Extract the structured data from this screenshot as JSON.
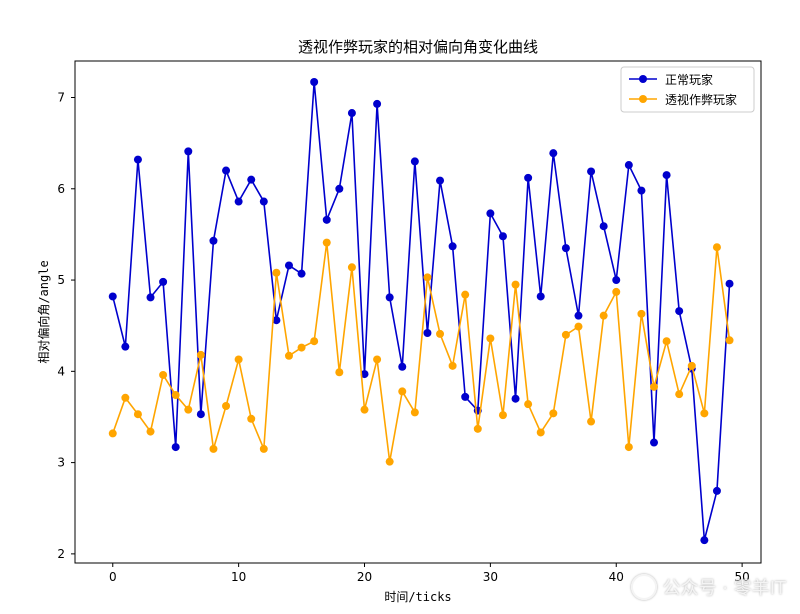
{
  "chart_data": {
    "type": "line",
    "title": "透视作弊玩家的相对偏向角变化曲线",
    "xlabel": "时间/ticks",
    "ylabel": "相对偏向角/angle",
    "xlim": [
      -3,
      51.5
    ],
    "ylim": [
      1.9,
      7.4
    ],
    "xticks": [
      0,
      10,
      20,
      30,
      40,
      50
    ],
    "yticks": [
      2,
      3,
      4,
      5,
      6,
      7
    ],
    "grid": false,
    "legend_position": "top-right",
    "x": [
      0,
      1,
      2,
      3,
      4,
      5,
      6,
      7,
      8,
      9,
      10,
      11,
      12,
      13,
      14,
      15,
      16,
      17,
      18,
      19,
      20,
      21,
      22,
      23,
      24,
      25,
      26,
      27,
      28,
      29,
      30,
      31,
      32,
      33,
      34,
      35,
      36,
      37,
      38,
      39,
      40,
      41,
      42,
      43,
      44,
      45,
      46,
      47,
      48,
      49
    ],
    "series": [
      {
        "name": "正常玩家",
        "color": "#0000cd",
        "values": [
          4.82,
          4.27,
          6.32,
          4.81,
          4.98,
          3.17,
          6.41,
          3.53,
          5.43,
          6.2,
          5.86,
          6.1,
          5.86,
          4.56,
          5.16,
          5.07,
          7.17,
          5.66,
          6.0,
          6.83,
          3.97,
          6.93,
          4.81,
          4.05,
          6.3,
          4.42,
          6.09,
          5.37,
          3.72,
          3.57,
          5.73,
          5.48,
          3.7,
          6.12,
          4.82,
          6.39,
          5.35,
          4.61,
          6.19,
          5.59,
          5.0,
          6.26,
          5.98,
          3.22,
          6.15,
          4.66,
          4.03,
          2.15,
          2.69,
          4.96
        ]
      },
      {
        "name": "透视作弊玩家",
        "color": "#ffa500",
        "values": [
          3.32,
          3.71,
          3.53,
          3.34,
          3.96,
          3.74,
          3.58,
          4.18,
          3.15,
          3.62,
          4.13,
          3.48,
          3.15,
          5.08,
          4.17,
          4.26,
          4.33,
          5.41,
          3.99,
          5.14,
          3.58,
          4.13,
          3.01,
          3.78,
          3.55,
          5.03,
          4.41,
          4.06,
          4.84,
          3.37,
          4.36,
          3.52,
          4.95,
          3.64,
          3.33,
          3.54,
          4.4,
          4.49,
          3.45,
          4.61,
          4.87,
          3.17,
          4.63,
          3.83,
          4.33,
          3.75,
          4.06,
          3.54,
          5.36,
          4.34
        ]
      }
    ]
  },
  "watermark": {
    "icon": "wechat-channel-icon",
    "text": "公众号 · 零羊IT"
  }
}
